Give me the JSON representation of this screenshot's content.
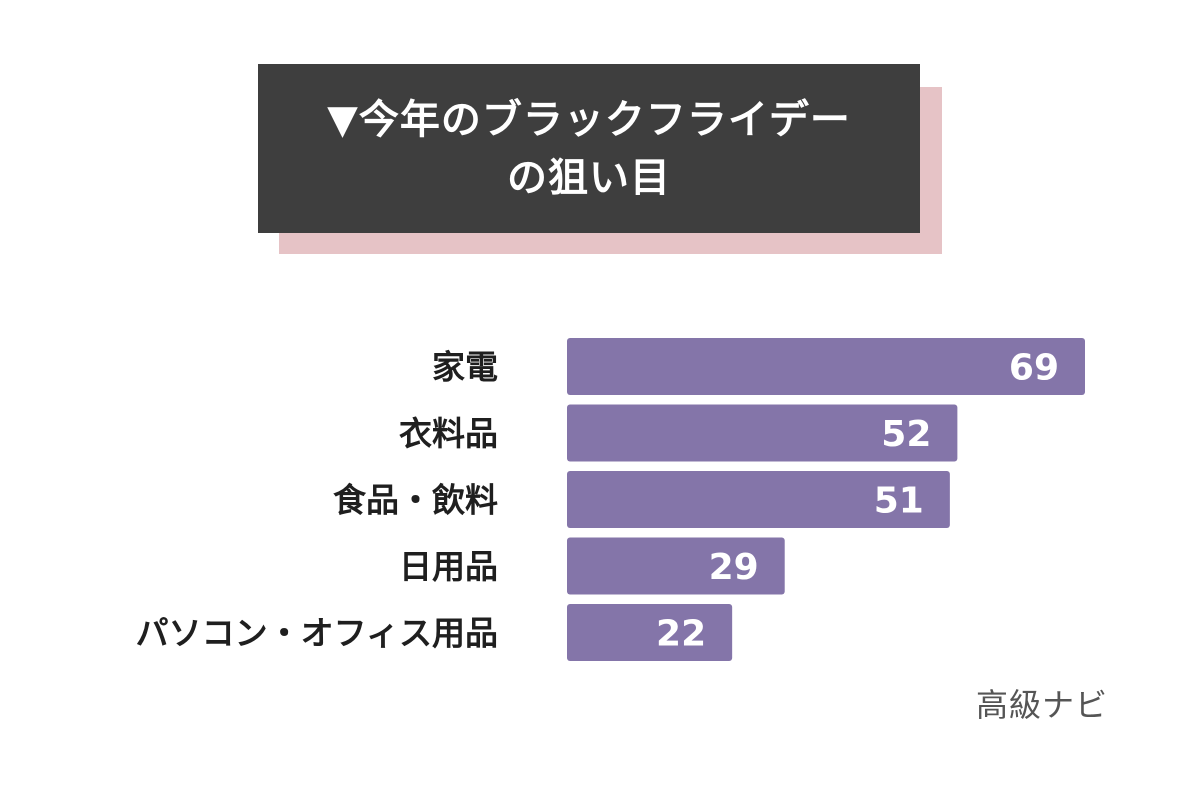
{
  "title": {
    "line1": "▼今年のブラックフライデー",
    "line2": "の狙い目"
  },
  "colors": {
    "title_background": "#3e3e3e",
    "title_shadow": "#e6c3c6",
    "bar": "#8475a9",
    "value_label": "#ffffff",
    "category_label": "#1f1f1f"
  },
  "chart_data": {
    "type": "bar",
    "orientation": "horizontal",
    "categories": [
      "家電",
      "衣料品",
      "食品・飲料",
      "日用品",
      "パソコン・オフィス用品"
    ],
    "values": [
      69,
      52,
      51,
      29,
      22
    ],
    "title": "",
    "xlabel": "",
    "ylabel": "",
    "xlim": [
      0,
      69
    ],
    "grid": false
  },
  "watermark": "高級ナビ"
}
